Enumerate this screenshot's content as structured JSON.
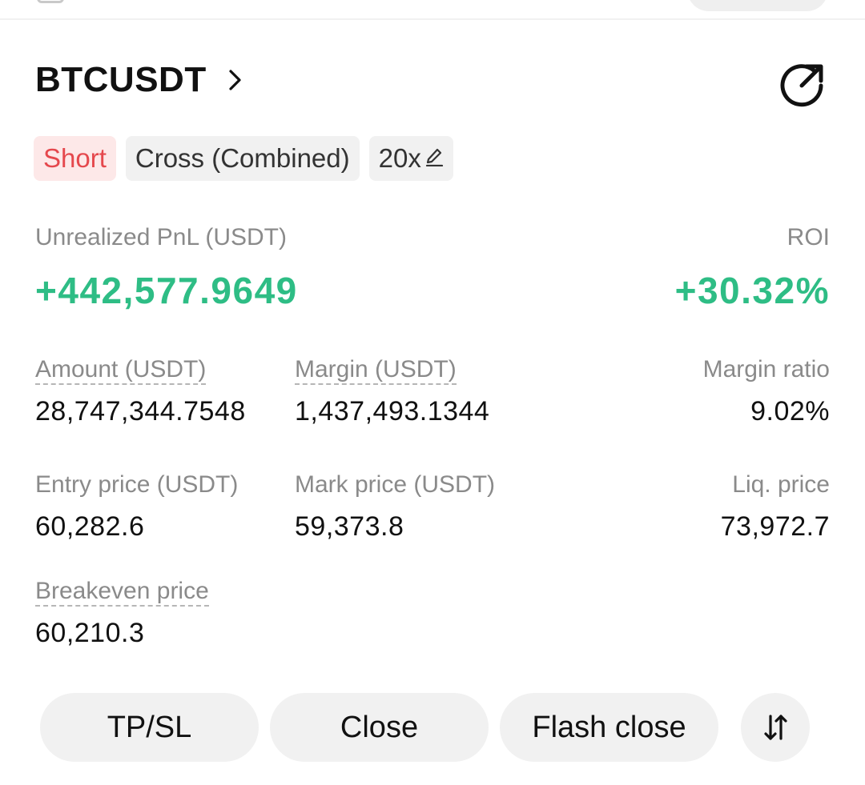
{
  "position": {
    "symbol": "BTCUSDT",
    "tags": {
      "side": "Short",
      "margin_mode": "Cross (Combined)",
      "leverage": "20x"
    },
    "pnl": {
      "label": "Unrealized PnL (USDT)",
      "value": "+442,577.9649"
    },
    "roi": {
      "label": "ROI",
      "value": "+30.32%"
    },
    "stats": {
      "amount": {
        "label": "Amount (USDT)",
        "value": "28,747,344.7548"
      },
      "margin": {
        "label": "Margin (USDT)",
        "value": "1,437,493.1344"
      },
      "margin_ratio": {
        "label": "Margin ratio",
        "value": "9.02%"
      },
      "entry_price": {
        "label": "Entry price (USDT)",
        "value": "60,282.6"
      },
      "mark_price": {
        "label": "Mark price (USDT)",
        "value": "59,373.8"
      },
      "liq_price": {
        "label": "Liq. price",
        "value": "73,972.7"
      },
      "breakeven_price": {
        "label": "Breakeven price",
        "value": "60,210.3"
      }
    }
  },
  "actions": {
    "tpsl": "TP/SL",
    "close": "Close",
    "flash_close": "Flash close"
  },
  "icons": {
    "symbol_chevron": "chevron-right-icon",
    "share": "share-icon",
    "leverage_edit": "pencil-icon",
    "swap": "swap-vertical-icon"
  },
  "colors": {
    "profit": "#2ebd85",
    "short": "#e5484d",
    "short_bg": "#fde8e8",
    "chip_bg": "#f1f1f1"
  }
}
